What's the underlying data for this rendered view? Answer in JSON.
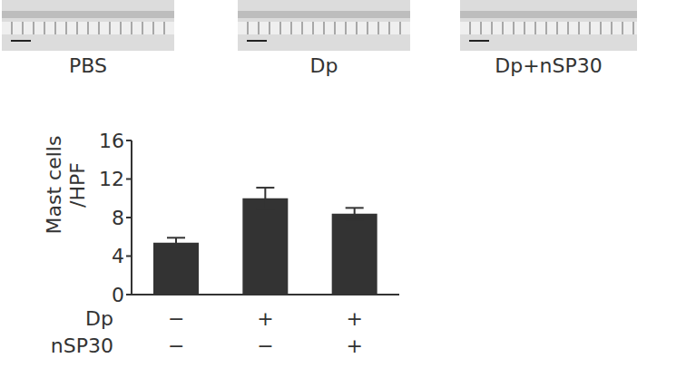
{
  "images": {
    "labels": [
      "PBS",
      "Dp",
      "Dp+nSP30"
    ]
  },
  "chart_data": {
    "type": "bar",
    "y_label": "Mast cells /HPF",
    "categories": [
      null,
      null,
      null
    ],
    "conditions": [
      {
        "name": "Dp",
        "labels": [
          "−",
          "+",
          "+"
        ]
      },
      {
        "name": "nSP30",
        "labels": [
          "−",
          "−",
          "+"
        ]
      }
    ],
    "values": [
      5.4,
      10.0,
      8.4
    ],
    "errors": [
      0.5,
      1.1,
      0.6
    ],
    "color": "#333333",
    "ylim": [
      0,
      16
    ],
    "yticks": [
      0,
      4,
      8,
      12,
      16
    ],
    "grid": false
  }
}
